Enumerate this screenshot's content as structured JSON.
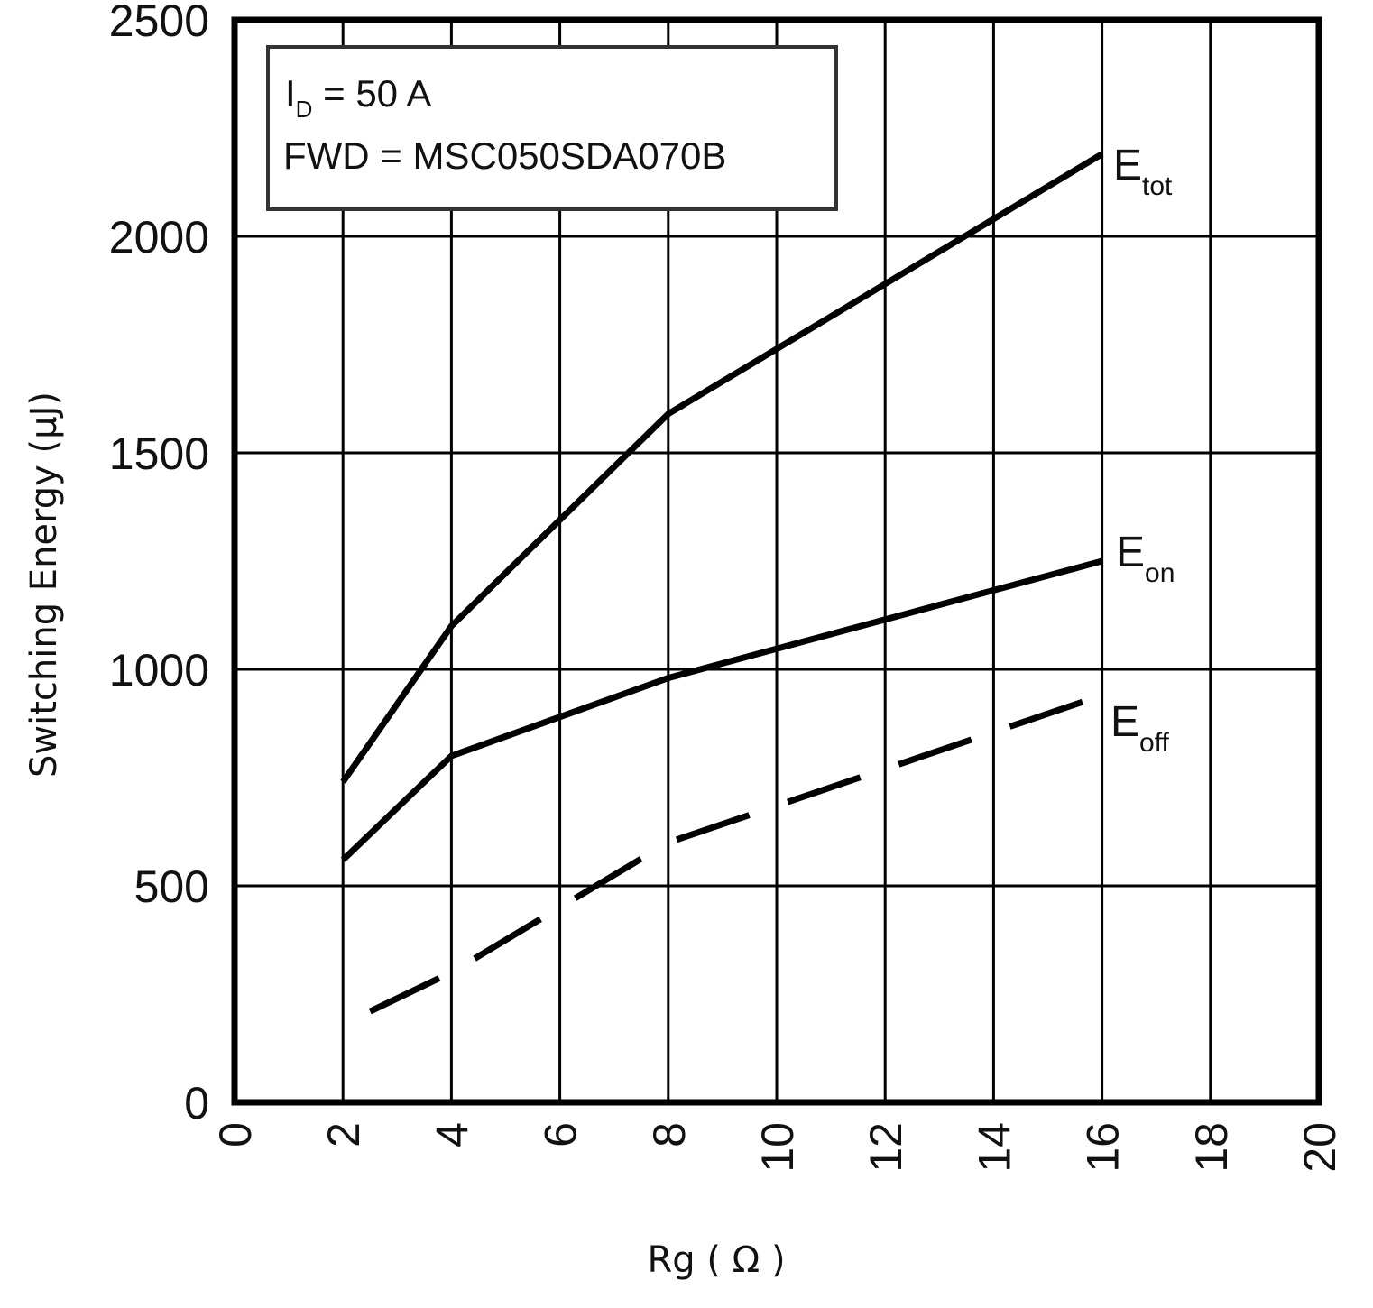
{
  "chart_data": {
    "type": "line",
    "xlabel": "Rg ( Ω )",
    "ylabel": "Switching Energy (μJ)",
    "xlim": [
      0,
      20
    ],
    "ylim": [
      0,
      2500
    ],
    "x_ticks": [
      "0",
      "2",
      "4",
      "6",
      "8",
      "10",
      "12",
      "14",
      "16",
      "18",
      "20"
    ],
    "y_ticks": [
      "0",
      "500",
      "1000",
      "1500",
      "2000",
      "2500"
    ],
    "grid": true,
    "annotation": {
      "line1_main": "I",
      "line1_sub": "D",
      "line1_rest": " = 50 A",
      "line2": "FWD = MSC050SDA070B"
    },
    "series": [
      {
        "name_main": "E",
        "name_sub": "tot",
        "style": "solid",
        "x": [
          2,
          4,
          8,
          16
        ],
        "y": [
          740,
          1100,
          1590,
          2190
        ]
      },
      {
        "name_main": "E",
        "name_sub": "on",
        "style": "solid",
        "x": [
          2,
          4,
          8,
          16
        ],
        "y": [
          560,
          800,
          980,
          1250
        ]
      },
      {
        "name_main": "E",
        "name_sub": "off",
        "style": "dashed",
        "x": [
          2.5,
          4,
          8,
          16
        ],
        "y": [
          210,
          300,
          600,
          940
        ]
      }
    ]
  }
}
